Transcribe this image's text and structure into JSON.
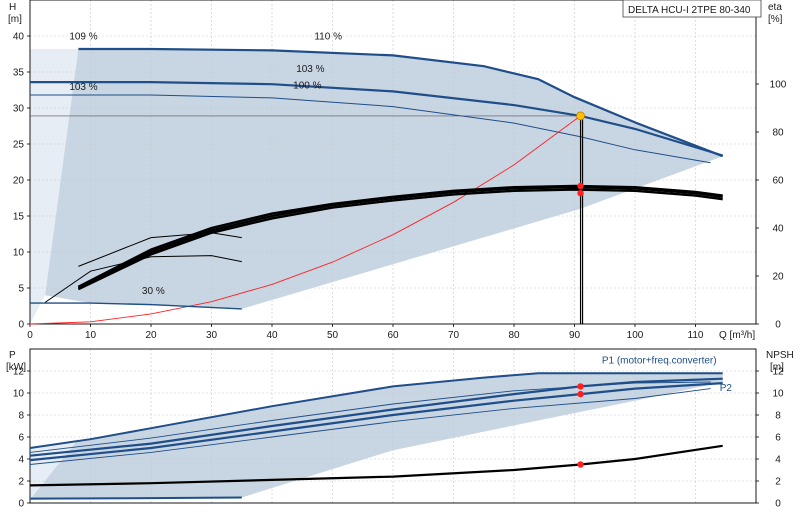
{
  "chart_data": [
    {
      "type": "line",
      "title": "DELTA HCU-I 2TPE 80-340",
      "xlabel": "Q [m³/h]",
      "ylabel_top": "H",
      "ylabel_unit": "[m]",
      "y2label_top": "eta",
      "y2label_unit": "[%]",
      "xlim": [
        0,
        120
      ],
      "ylim": [
        0,
        45
      ],
      "y2lim": [
        0,
        135
      ],
      "x_ticks": [
        "0",
        "10",
        "20",
        "30",
        "40",
        "50",
        "60",
        "70",
        "80",
        "90",
        "100",
        "110"
      ],
      "y_ticks": [
        "0",
        "5",
        "10",
        "15",
        "20",
        "25",
        "30",
        "35",
        "40"
      ],
      "y2_ticks": [
        "0",
        "20",
        "40",
        "60",
        "80",
        "100"
      ],
      "grid": true,
      "colors": {
        "head": "#1f4e88",
        "area": "#c5d3e1",
        "area_light": "#e6edf4",
        "system": "#ff2020",
        "eta": "#000000",
        "duty_point": "#ffc000",
        "marker": "#ff2020"
      },
      "labels": [
        {
          "text": "109 %",
          "x": 6.5,
          "y": 39.5
        },
        {
          "text": "110 %",
          "x": 47,
          "y": 39.5
        },
        {
          "text": "103 %",
          "x": 44,
          "y": 35.0
        },
        {
          "text": "103 %",
          "x": 6.5,
          "y": 32.5
        },
        {
          "text": "100 %",
          "x": 43.5,
          "y": 32.7
        },
        {
          "text": "30 %",
          "x": 18.5,
          "y": 4.2
        }
      ],
      "series": [
        {
          "name": "110 %",
          "role": "max",
          "x": [
            8,
            20,
            40,
            60,
            75,
            84,
            90,
            100,
            114.5
          ],
          "y": [
            38.2,
            38.2,
            38,
            37.3,
            35.8,
            34,
            31.5,
            28,
            23.3
          ]
        },
        {
          "name": "103 %",
          "role": "duty",
          "x": [
            0,
            20,
            40,
            60,
            80,
            91,
            100,
            114.5
          ],
          "y": [
            33.6,
            33.6,
            33.3,
            32.3,
            30.4,
            28.9,
            27.1,
            23.4
          ]
        },
        {
          "name": "100 %",
          "role": "thin",
          "x": [
            0,
            20,
            40,
            60,
            80,
            91,
            100,
            112.5
          ],
          "y": [
            31.8,
            31.8,
            31.4,
            30.2,
            27.9,
            26.0,
            24.2,
            22.4
          ]
        },
        {
          "name": "system",
          "role": "system",
          "x": [
            0,
            10,
            20,
            30,
            40,
            50,
            60,
            70,
            80,
            91
          ],
          "y": [
            0,
            0.3,
            1.4,
            3.1,
            5.5,
            8.6,
            12.4,
            16.9,
            22.1,
            28.9
          ]
        },
        {
          "name": "30 %",
          "role": "min",
          "x": [
            0,
            10,
            20,
            35
          ],
          "y": [
            2.9,
            2.9,
            2.7,
            2.1
          ]
        },
        {
          "name": "eta 110 %",
          "role": "eta",
          "x": [
            8,
            20,
            30,
            40,
            50,
            60,
            70,
            80,
            90,
            100,
            110,
            114.5
          ],
          "y": [
            15.5,
            31,
            40,
            46,
            50,
            53,
            55.5,
            57,
            57.5,
            57,
            55,
            53.5
          ]
        },
        {
          "name": "eta 103 %",
          "role": "eta",
          "x": [
            8,
            20,
            30,
            40,
            50,
            60,
            70,
            80,
            90,
            100,
            110,
            114.5
          ],
          "y": [
            15,
            30,
            39,
            45,
            49.5,
            52.5,
            55,
            56.5,
            57,
            56.5,
            54.5,
            53
          ]
        },
        {
          "name": "eta 100 %",
          "role": "eta",
          "x": [
            8,
            20,
            30,
            40,
            50,
            60,
            70,
            80,
            90,
            100,
            110,
            114.5
          ],
          "y": [
            14.5,
            29,
            38,
            44,
            48.5,
            51.5,
            54,
            55.5,
            56,
            55.5,
            53.5,
            52
          ]
        },
        {
          "name": "eta 80 %",
          "role": "eta-thin",
          "x": [
            8,
            20,
            30,
            35
          ],
          "y": [
            24,
            36,
            38,
            36
          ]
        },
        {
          "name": "eta 60 %",
          "role": "eta-thin",
          "x": [
            2.5,
            10,
            20,
            30,
            35
          ],
          "y": [
            9,
            22,
            28,
            28.5,
            26
          ]
        }
      ],
      "duty_point": {
        "x": 91,
        "y": 28.9
      },
      "markers": [
        {
          "x": 91,
          "y": 57.5
        },
        {
          "x": 91,
          "y": 54.5
        }
      ]
    },
    {
      "type": "line",
      "ylabel_top": "P",
      "ylabel_unit": "[kW]",
      "y2label_top": "NPSH",
      "y2label_unit": "[m]",
      "xlim": [
        0,
        120
      ],
      "ylim": [
        0,
        14
      ],
      "y_ticks": [
        "0",
        "2",
        "4",
        "6",
        "8",
        "10",
        "12"
      ],
      "y2_ticks": [
        "0",
        "2",
        "4",
        "6",
        "8",
        "10",
        "12"
      ],
      "grid": true,
      "labels": [
        {
          "text": "P1 (motor+freq.converter)",
          "x": 104,
          "y": 12.7
        },
        {
          "text": "P2",
          "x": 114,
          "y": 10.2
        }
      ],
      "series": [
        {
          "name": "P max",
          "role": "max",
          "x": [
            0,
            10,
            20,
            40,
            60,
            75,
            84,
            100,
            114.5
          ],
          "y": [
            5.0,
            5.8,
            6.8,
            8.8,
            10.6,
            11.4,
            11.8,
            11.8,
            11.8
          ]
        },
        {
          "name": "P1 (motor+freq.converter)",
          "role": "p1",
          "x": [
            0,
            20,
            40,
            60,
            80,
            91,
            100,
            114.5
          ],
          "y": [
            4.3,
            5.4,
            7.0,
            8.5,
            9.9,
            10.6,
            11.0,
            11.3
          ]
        },
        {
          "name": "P2",
          "role": "p2",
          "x": [
            0,
            20,
            40,
            60,
            80,
            91,
            100,
            114.5
          ],
          "y": [
            3.9,
            5.0,
            6.5,
            8.0,
            9.3,
            9.9,
            10.4,
            10.9
          ]
        },
        {
          "name": "P thin upper",
          "role": "thin",
          "x": [
            0,
            20,
            40,
            60,
            80,
            100,
            112.5
          ],
          "y": [
            4.6,
            5.9,
            7.5,
            9.0,
            10.2,
            10.9,
            11.0
          ]
        },
        {
          "name": "P thin lower",
          "role": "thin",
          "x": [
            0,
            20,
            40,
            60,
            80,
            100,
            112.5
          ],
          "y": [
            3.5,
            4.6,
            6.0,
            7.4,
            8.6,
            9.5,
            10.4
          ]
        },
        {
          "name": "NPSH",
          "role": "npsh",
          "x": [
            0,
            20,
            40,
            60,
            80,
            91,
            100,
            114.5
          ],
          "y": [
            1.6,
            1.8,
            2.1,
            2.4,
            3.0,
            3.5,
            4.0,
            5.2
          ]
        },
        {
          "name": "P min",
          "role": "min",
          "x": [
            0,
            20,
            35
          ],
          "y": [
            0.4,
            0.45,
            0.5
          ]
        }
      ],
      "markers": [
        {
          "x": 91,
          "y": 10.6
        },
        {
          "x": 91,
          "y": 9.9
        },
        {
          "x": 91,
          "y": 3.5
        }
      ]
    }
  ]
}
